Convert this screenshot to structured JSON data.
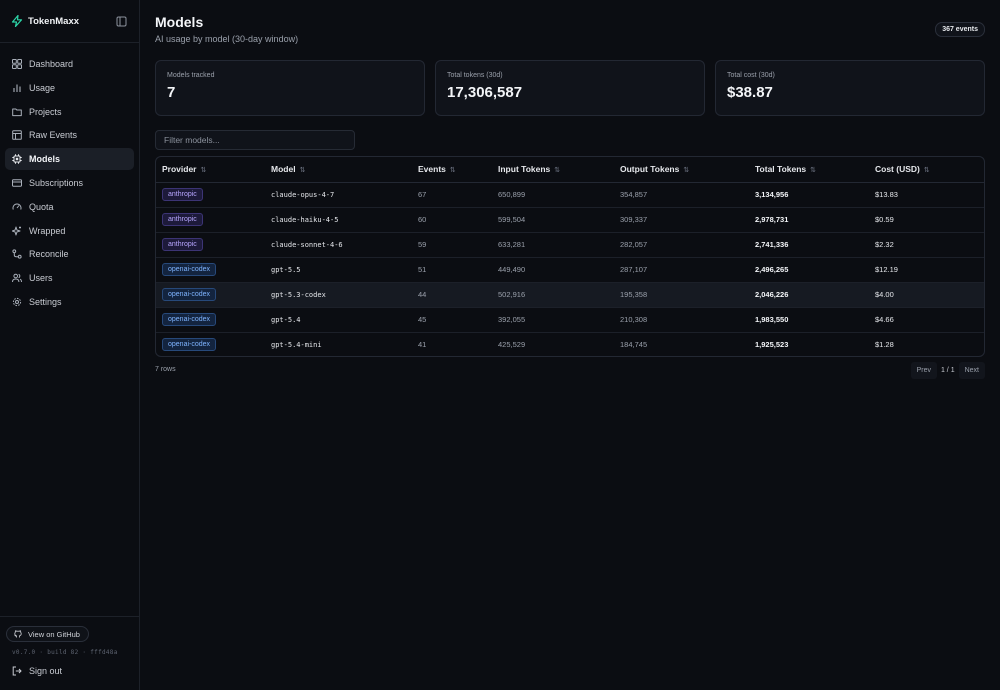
{
  "app": {
    "name": "TokenMaxx"
  },
  "sidebar": {
    "items": [
      {
        "label": "Dashboard",
        "icon": "grid-icon"
      },
      {
        "label": "Usage",
        "icon": "bar-chart-icon"
      },
      {
        "label": "Projects",
        "icon": "folder-icon"
      },
      {
        "label": "Raw Events",
        "icon": "table-icon"
      },
      {
        "label": "Models",
        "icon": "cpu-icon",
        "active": true
      },
      {
        "label": "Subscriptions",
        "icon": "credit-card-icon"
      },
      {
        "label": "Quota",
        "icon": "gauge-icon"
      },
      {
        "label": "Wrapped",
        "icon": "sparkle-icon"
      },
      {
        "label": "Reconcile",
        "icon": "git-compare-icon"
      },
      {
        "label": "Users",
        "icon": "users-icon"
      },
      {
        "label": "Settings",
        "icon": "gear-icon"
      }
    ],
    "github_label": "View on GitHub",
    "version": "v0.7.0 · build 82 · fffd48a",
    "signout_label": "Sign out"
  },
  "header": {
    "title": "Models",
    "subtitle": "AI usage by model (30-day window)",
    "events_badge": "367 events"
  },
  "stats": [
    {
      "label": "Models tracked",
      "value": "7"
    },
    {
      "label": "Total tokens (30d)",
      "value": "17,306,587"
    },
    {
      "label": "Total cost (30d)",
      "value": "$38.87"
    }
  ],
  "filter": {
    "placeholder": "Filter models..."
  },
  "table": {
    "columns": [
      "Provider",
      "Model",
      "Events",
      "Input Tokens",
      "Output Tokens",
      "Total Tokens",
      "Cost (USD)"
    ],
    "rows": [
      {
        "provider": "anthropic",
        "model": "claude-opus-4-7",
        "events": "67",
        "input": "650,899",
        "output": "354,857",
        "total": "3,134,956",
        "cost": "$13.83"
      },
      {
        "provider": "anthropic",
        "model": "claude-haiku-4-5",
        "events": "60",
        "input": "599,504",
        "output": "309,337",
        "total": "2,978,731",
        "cost": "$0.59"
      },
      {
        "provider": "anthropic",
        "model": "claude-sonnet-4-6",
        "events": "59",
        "input": "633,281",
        "output": "282,057",
        "total": "2,741,336",
        "cost": "$2.32"
      },
      {
        "provider": "openai-codex",
        "model": "gpt-5.5",
        "events": "51",
        "input": "449,490",
        "output": "287,107",
        "total": "2,496,265",
        "cost": "$12.19"
      },
      {
        "provider": "openai-codex",
        "model": "gpt-5.3-codex",
        "events": "44",
        "input": "502,916",
        "output": "195,358",
        "total": "2,046,226",
        "cost": "$4.00"
      },
      {
        "provider": "openai-codex",
        "model": "gpt-5.4",
        "events": "45",
        "input": "392,055",
        "output": "210,308",
        "total": "1,983,550",
        "cost": "$4.66"
      },
      {
        "provider": "openai-codex",
        "model": "gpt-5.4-mini",
        "events": "41",
        "input": "425,529",
        "output": "184,745",
        "total": "1,925,523",
        "cost": "$1.28"
      }
    ]
  },
  "footer": {
    "rows_count": "7 rows",
    "prev_label": "Prev",
    "page_info": "1 / 1",
    "next_label": "Next"
  },
  "colors": {
    "background": "#0b0d12",
    "anthropic_pill": "#b7a6ff",
    "openai_pill": "#7fb4ff",
    "brand_accent": "#2dd4a7"
  }
}
